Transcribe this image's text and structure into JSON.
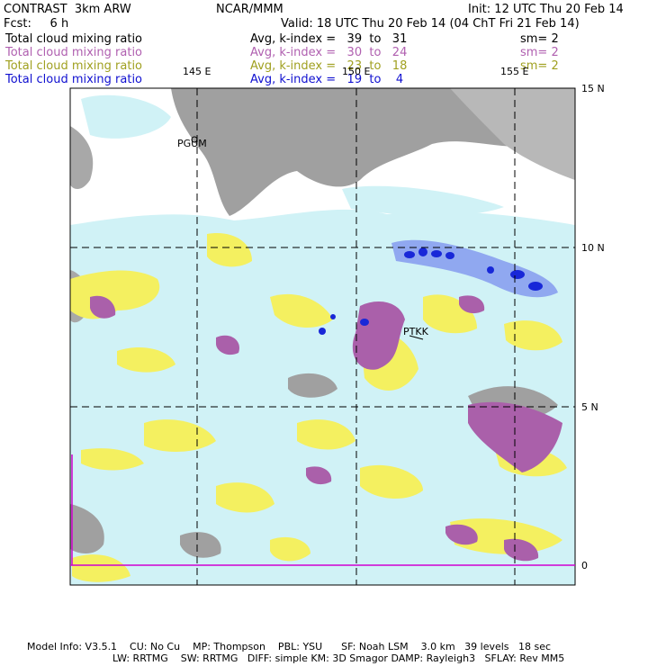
{
  "header": {
    "model": "CONTRAST  3km ARW",
    "org": "NCAR/MMM",
    "init": "Init: 12 UTC Thu 20 Feb 14",
    "fcst": "Fcst:     6 h",
    "valid": "Valid: 18 UTC Thu 20 Feb 14 (04 ChT Fri 21 Feb 14)"
  },
  "legend": [
    {
      "label": "Total cloud mixing ratio",
      "stat": "Avg, k-index =   39  to   31",
      "sm": "sm= 2",
      "color": "#000000"
    },
    {
      "label": "Total cloud mixing ratio",
      "stat": "Avg, k-index =   30  to   24",
      "sm": "sm= 2",
      "color": "#b060b0"
    },
    {
      "label": "Total cloud mixing ratio",
      "stat": "Avg, k-index =   23  to   18",
      "sm": "sm= 2",
      "color": "#a0a020"
    },
    {
      "label": "Total cloud mixing ratio",
      "stat": "Avg, k-index =   19  to    4",
      "sm": "",
      "color": "#1010d0"
    }
  ],
  "map": {
    "lon_labels": [
      "145 E",
      "150 E",
      "155 E"
    ],
    "lat_labels": [
      "15 N",
      "10 N",
      "5 N",
      "0"
    ],
    "stations": [
      "PGUM",
      "PTKK"
    ],
    "colors": {
      "background_cloud": "#d0f2f6",
      "land_gray": "#a0a0a0",
      "violet": "#aa60aa",
      "yellow": "#f4f060",
      "blue_dark": "#1828d8",
      "blue_light": "#90a8f0"
    }
  },
  "footer": {
    "line1": "Model Info: V3.5.1    CU: No Cu    MP: Thompson    PBL: YSU      SF: Noah LSM    3.0 km   39 levels   18 sec",
    "line2": "LW: RRTMG    SW: RRTMG   DIFF: simple KM: 3D Smagor DAMP: Rayleigh3   SFLAY: Rev MM5"
  }
}
